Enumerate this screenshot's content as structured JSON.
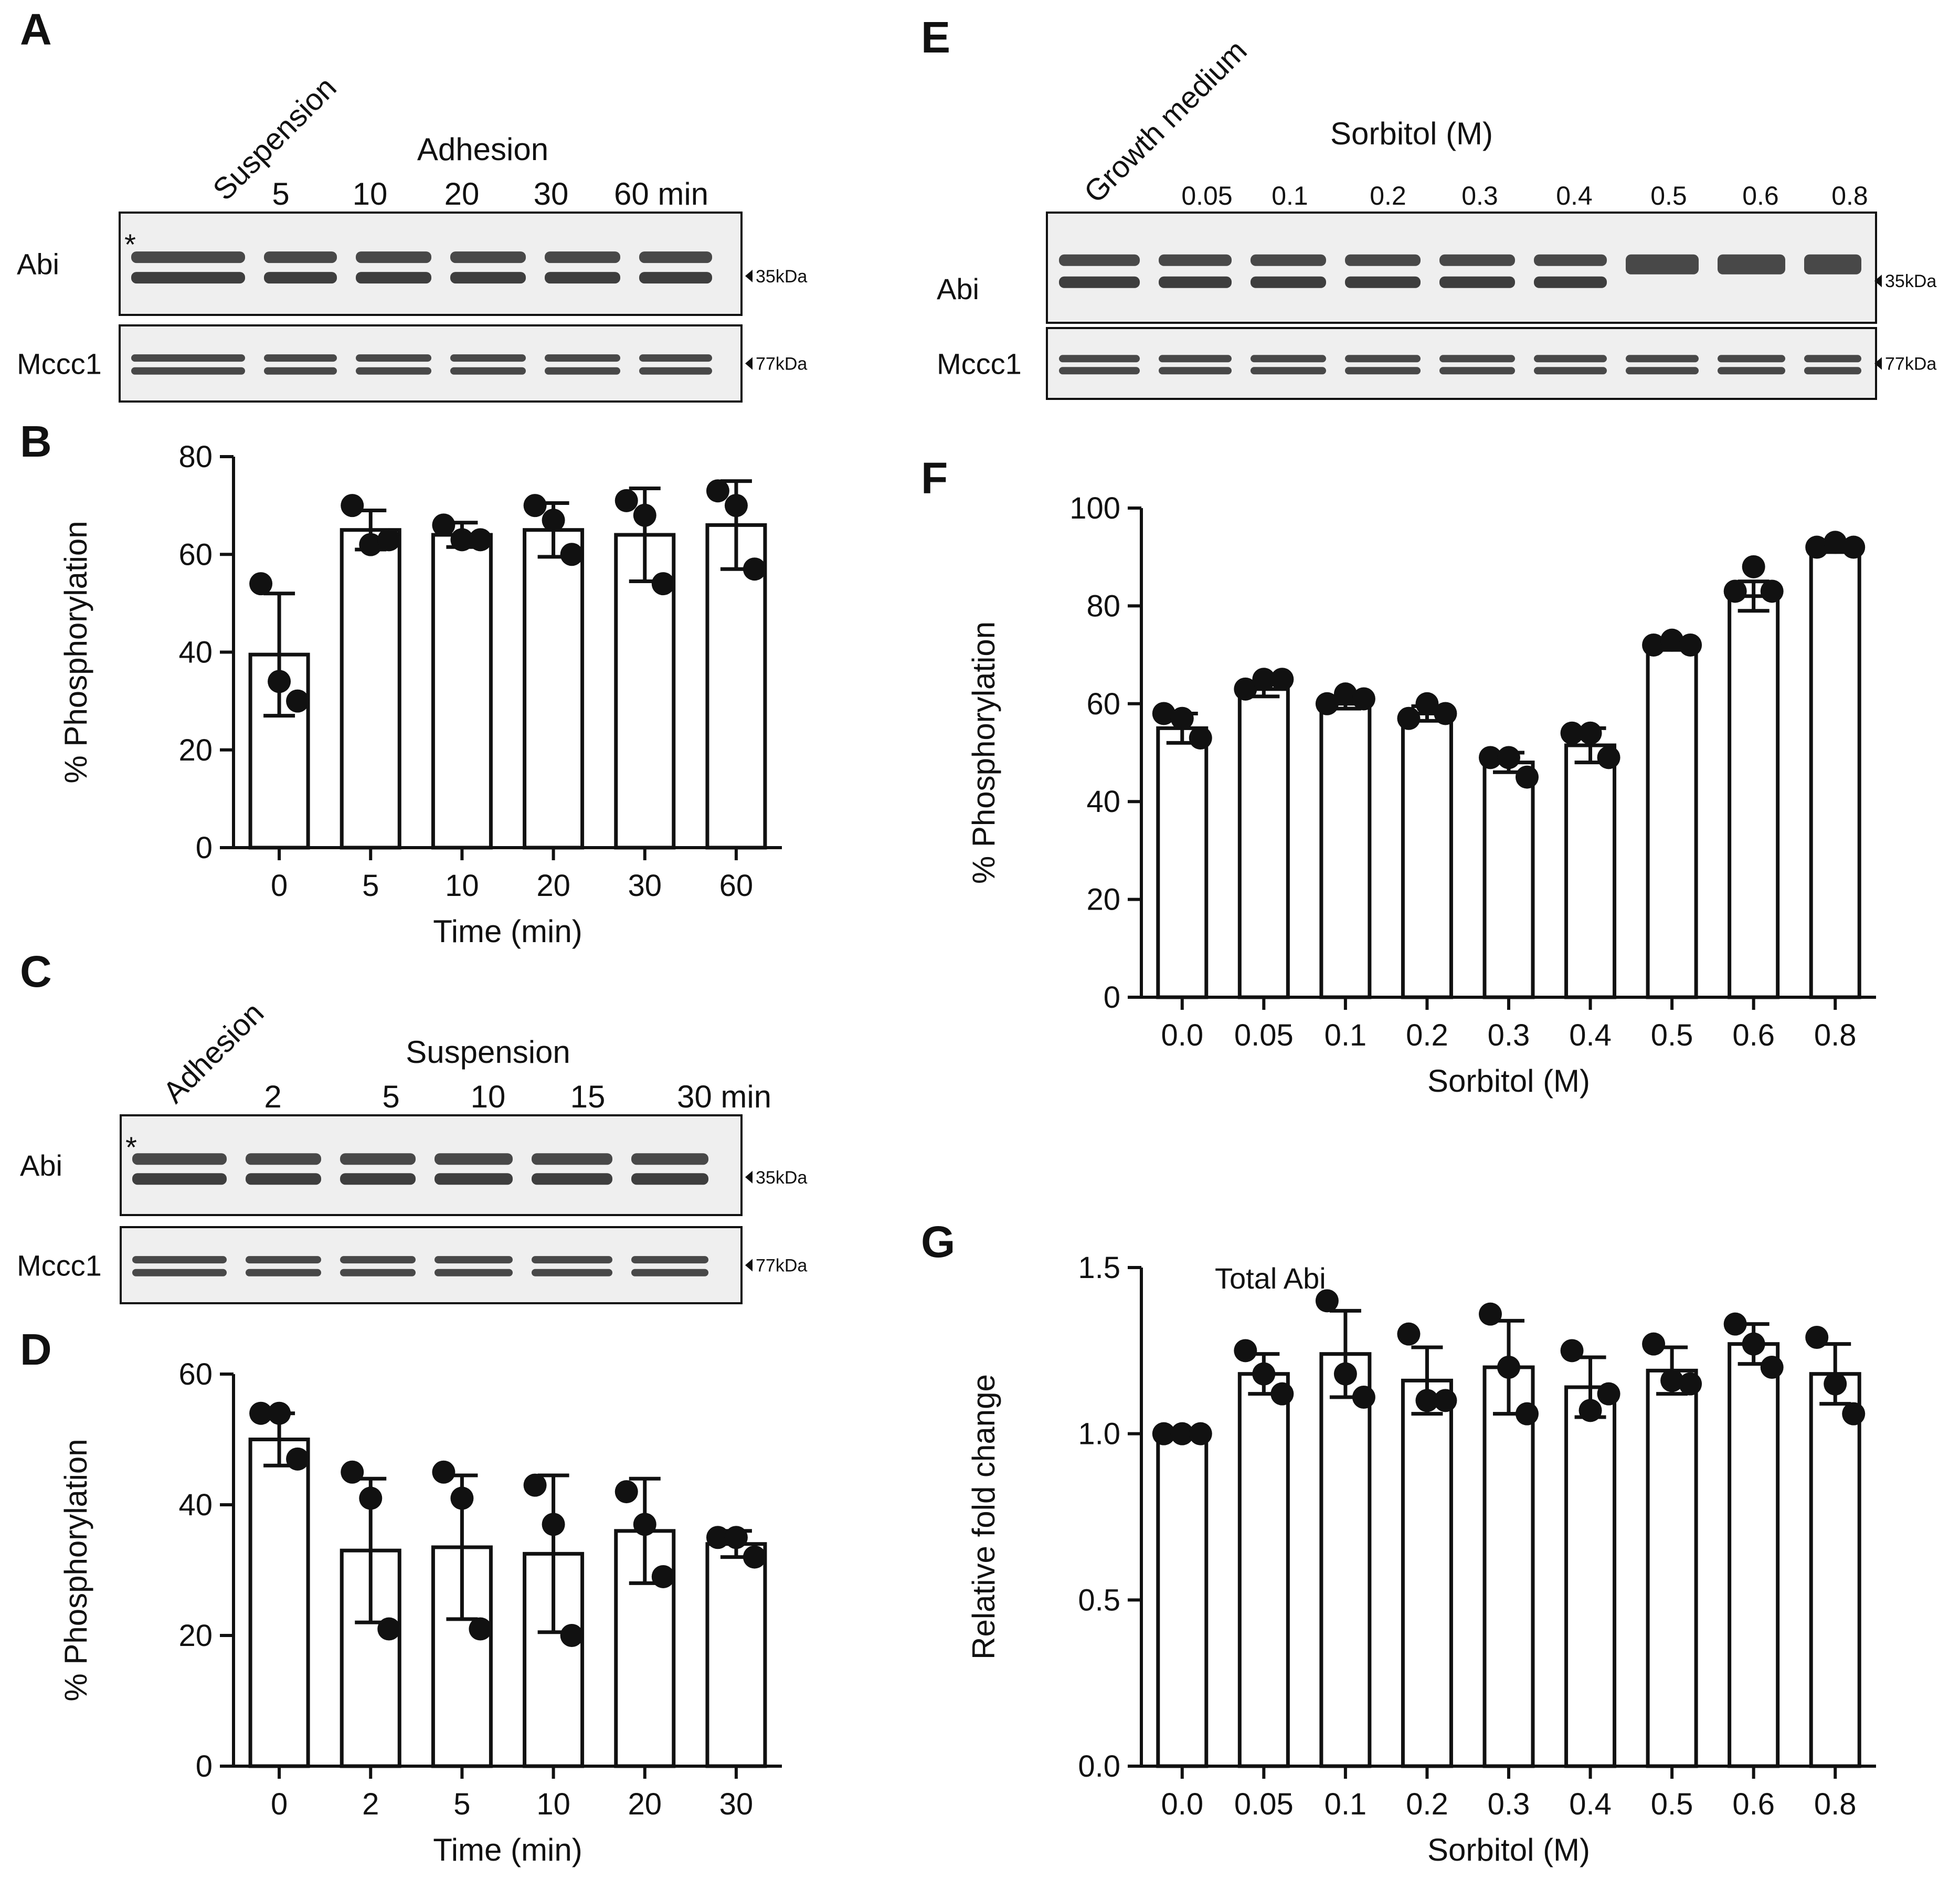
{
  "figure": {
    "colors": {
      "ink": "#111111",
      "bar_fill": "#ffffff",
      "blot_bg": "#efefef",
      "band": "#2a2a2a"
    }
  },
  "blots": [
    {
      "panel": "A",
      "left_label": "Suspension",
      "group_label": "Adhesion",
      "lanes": [
        "5",
        "10",
        "20",
        "30",
        "60 min"
      ],
      "rows": [
        {
          "name": "Abi",
          "marker": "35kDa",
          "asterisk": "*"
        },
        {
          "name": "Mccc1",
          "marker": "77kDa",
          "asterisk": ""
        }
      ]
    },
    {
      "panel": "C",
      "left_label": "Adhesion",
      "group_label": "Suspension",
      "lanes": [
        "2",
        "5",
        "10",
        "15",
        "30 min"
      ],
      "rows": [
        {
          "name": "Abi",
          "marker": "35kDa",
          "asterisk": "*"
        },
        {
          "name": "Mccc1",
          "marker": "77kDa",
          "asterisk": ""
        }
      ]
    },
    {
      "panel": "E",
      "left_label": "Growth medium",
      "group_label": "Sorbitol (M)",
      "lanes": [
        "0.05",
        "0.1",
        "0.2",
        "0.3",
        "0.4",
        "0.5",
        "0.6",
        "0.8"
      ],
      "rows": [
        {
          "name": "Abi",
          "marker": "35kDa",
          "asterisk": ""
        },
        {
          "name": "Mccc1",
          "marker": "77kDa",
          "asterisk": ""
        }
      ]
    }
  ],
  "chart_data": [
    {
      "panel": "B",
      "type": "bar",
      "title": "",
      "xlabel": "Time (min)",
      "ylabel": "% Phosphorylation",
      "categories": [
        "0",
        "5",
        "10",
        "20",
        "30",
        "60"
      ],
      "values": [
        39.5,
        65,
        64,
        65,
        64,
        66
      ],
      "error": [
        12.5,
        4,
        2.5,
        5.5,
        9.5,
        9
      ],
      "points": [
        [
          54,
          34,
          30
        ],
        [
          70,
          62,
          63
        ],
        [
          66,
          63,
          63
        ],
        [
          70,
          67,
          60
        ],
        [
          71,
          68,
          54
        ],
        [
          73,
          70,
          57
        ]
      ],
      "ylim": [
        0,
        80
      ],
      "yticks": [
        0,
        20,
        40,
        60,
        80
      ],
      "annotation": ""
    },
    {
      "panel": "D",
      "type": "bar",
      "title": "",
      "xlabel": "Time (min)",
      "ylabel": "% Phosphorylation",
      "categories": [
        "0",
        "2",
        "5",
        "10",
        "20",
        "30"
      ],
      "values": [
        50,
        33,
        33.5,
        32.5,
        36,
        34
      ],
      "error": [
        4,
        11,
        11,
        12,
        8,
        2
      ],
      "points": [
        [
          54,
          54,
          47
        ],
        [
          45,
          41,
          21
        ],
        [
          45,
          41,
          21
        ],
        [
          43,
          37,
          20
        ],
        [
          42,
          37,
          29
        ],
        [
          35,
          35,
          32
        ]
      ],
      "ylim": [
        0,
        60
      ],
      "yticks": [
        0,
        20,
        40,
        60
      ],
      "annotation": ""
    },
    {
      "panel": "F",
      "type": "bar",
      "title": "",
      "xlabel": "Sorbitol (M)",
      "ylabel": "% Phosphorylation",
      "categories": [
        "0.0",
        "0.05",
        "0.1",
        "0.2",
        "0.3",
        "0.4",
        "0.5",
        "0.6",
        "0.8"
      ],
      "values": [
        55,
        63,
        60,
        58,
        48,
        51.5,
        72,
        82,
        92
      ],
      "error": [
        3,
        1.5,
        1,
        1.5,
        2,
        3.5,
        1,
        3,
        1
      ],
      "points": [
        [
          58,
          57,
          53
        ],
        [
          63,
          65,
          65
        ],
        [
          60,
          62,
          61
        ],
        [
          57,
          60,
          58
        ],
        [
          49,
          49,
          45
        ],
        [
          54,
          54,
          49
        ],
        [
          72,
          73,
          72
        ],
        [
          83,
          88,
          83
        ],
        [
          92,
          93,
          92
        ]
      ],
      "ylim": [
        0,
        100
      ],
      "yticks": [
        0,
        20,
        40,
        60,
        80,
        100
      ],
      "annotation": ""
    },
    {
      "panel": "G",
      "type": "bar",
      "title": "",
      "xlabel": "Sorbitol (M)",
      "ylabel": "Relative fold change",
      "categories": [
        "0.0",
        "0.05",
        "0.1",
        "0.2",
        "0.3",
        "0.4",
        "0.5",
        "0.6",
        "0.8"
      ],
      "values": [
        1.0,
        1.18,
        1.24,
        1.16,
        1.2,
        1.14,
        1.19,
        1.27,
        1.18
      ],
      "error": [
        0.005,
        0.06,
        0.13,
        0.1,
        0.14,
        0.09,
        0.07,
        0.06,
        0.09
      ],
      "points": [
        [
          1.0,
          1.0,
          1.0
        ],
        [
          1.25,
          1.18,
          1.12
        ],
        [
          1.4,
          1.18,
          1.11
        ],
        [
          1.3,
          1.1,
          1.1
        ],
        [
          1.36,
          1.2,
          1.06
        ],
        [
          1.25,
          1.07,
          1.12
        ],
        [
          1.27,
          1.16,
          1.15
        ],
        [
          1.33,
          1.27,
          1.2
        ],
        [
          1.29,
          1.15,
          1.06
        ]
      ],
      "ylim": [
        0,
        1.5
      ],
      "yticks": [
        0.0,
        0.5,
        1.0,
        1.5
      ],
      "annotation": "Total Abi"
    }
  ]
}
